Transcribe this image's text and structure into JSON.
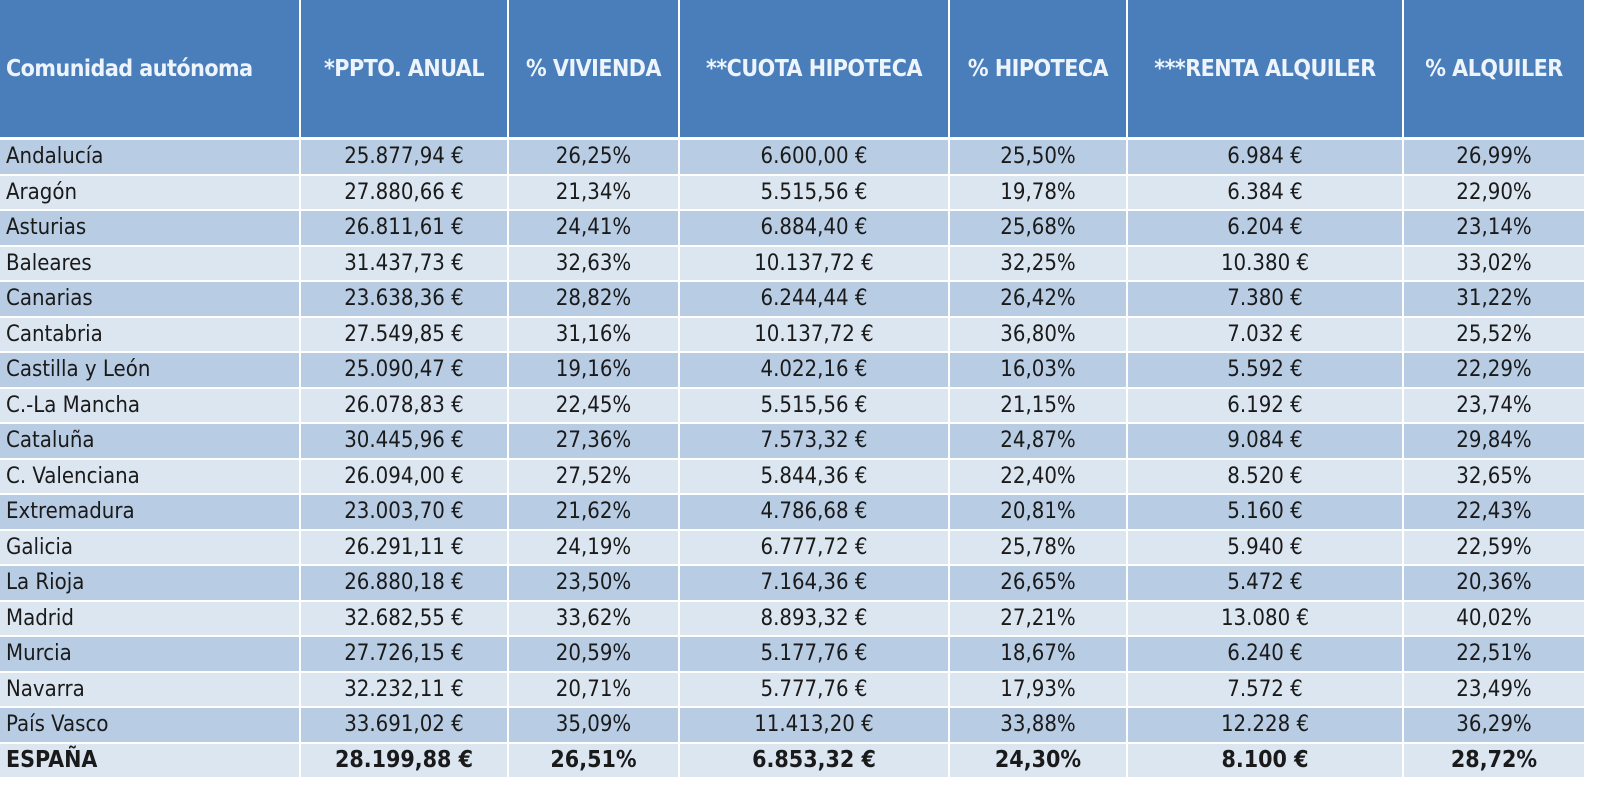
{
  "table": {
    "headers": [
      "Comunidad autónoma",
      "*PPTO. ANUAL",
      "% VIVIENDA",
      "**CUOTA HIPOTECA",
      "% HIPOTECA",
      "***RENTA ALQUILER",
      "%  ALQUILER"
    ],
    "rows": [
      [
        "Andalucía",
        "25.877,94 €",
        "26,25%",
        "6.600,00 €",
        "25,50%",
        "6.984 €",
        "26,99%"
      ],
      [
        "Aragón",
        "27.880,66 €",
        "21,34%",
        "5.515,56 €",
        "19,78%",
        "6.384 €",
        "22,90%"
      ],
      [
        "Asturias",
        "26.811,61 €",
        "24,41%",
        "6.884,40 €",
        "25,68%",
        "6.204 €",
        "23,14%"
      ],
      [
        "Baleares",
        "31.437,73 €",
        "32,63%",
        "10.137,72 €",
        "32,25%",
        "10.380 €",
        "33,02%"
      ],
      [
        "Canarias",
        "23.638,36 €",
        "28,82%",
        "6.244,44 €",
        "26,42%",
        "7.380 €",
        "31,22%"
      ],
      [
        "Cantabria",
        "27.549,85 €",
        "31,16%",
        "10.137,72 €",
        "36,80%",
        "7.032 €",
        "25,52%"
      ],
      [
        "Castilla y León",
        "25.090,47 €",
        "19,16%",
        "4.022,16 €",
        "16,03%",
        "5.592 €",
        "22,29%"
      ],
      [
        "C.-La Mancha",
        "26.078,83 €",
        "22,45%",
        "5.515,56 €",
        "21,15%",
        "6.192 €",
        "23,74%"
      ],
      [
        "Cataluña",
        "30.445,96 €",
        "27,36%",
        "7.573,32 €",
        "24,87%",
        "9.084 €",
        "29,84%"
      ],
      [
        "C. Valenciana",
        "26.094,00 €",
        "27,52%",
        "5.844,36 €",
        "22,40%",
        "8.520 €",
        "32,65%"
      ],
      [
        "Extremadura",
        "23.003,70 €",
        "21,62%",
        "4.786,68 €",
        "20,81%",
        "5.160 €",
        "22,43%"
      ],
      [
        "Galicia",
        "26.291,11 €",
        "24,19%",
        "6.777,72 €",
        "25,78%",
        "5.940 €",
        "22,59%"
      ],
      [
        "La Rioja",
        "26.880,18 €",
        "23,50%",
        "7.164,36 €",
        "26,65%",
        "5.472 €",
        "20,36%"
      ],
      [
        "Madrid",
        "32.682,55 €",
        "33,62%",
        "8.893,32 €",
        "27,21%",
        "13.080 €",
        "40,02%"
      ],
      [
        "Murcia",
        "27.726,15 €",
        "20,59%",
        "5.177,76 €",
        "18,67%",
        "6.240 €",
        "22,51%"
      ],
      [
        "Navarra",
        "32.232,11 €",
        "20,71%",
        "5.777,76 €",
        "17,93%",
        "7.572 €",
        "23,49%"
      ],
      [
        "País Vasco",
        "33.691,02 €",
        "35,09%",
        "11.413,20 €",
        "33,88%",
        "12.228 €",
        "36,29%"
      ]
    ],
    "total": [
      "ESPAÑA",
      "28.199,88 €",
      "26,51%",
      "6.853,32 €",
      "24,30%",
      "8.100 €",
      "28,72%"
    ]
  },
  "colors": {
    "header": "#4a7ebb",
    "row_dark": "#b8cce4",
    "row_light": "#dce6f1"
  }
}
